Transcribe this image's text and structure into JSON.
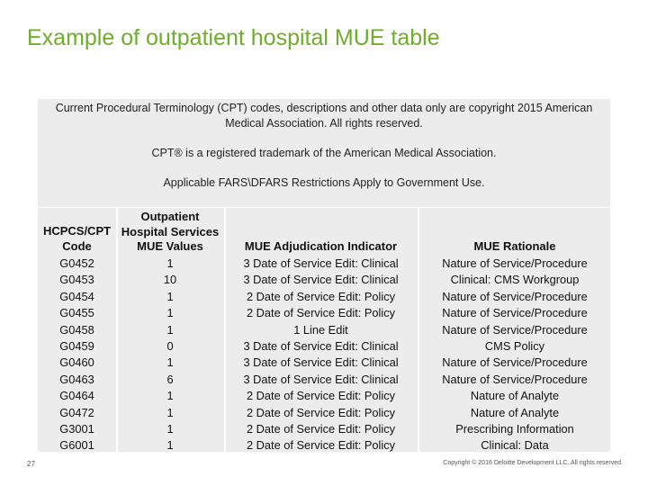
{
  "title": "Example of outpatient hospital MUE table",
  "notice": {
    "copyright": "Current Procedural Terminology (CPT) codes, descriptions and other data only are copyright 2015 American Medical Association. All rights reserved.",
    "trademark": "CPT® is a registered trademark of the American Medical Association.",
    "restrictions": "Applicable FARS\\DFARS Restrictions Apply to Government Use."
  },
  "table": {
    "headers": {
      "code_line1": "HCPCS/CPT",
      "code_line2": "Code",
      "values_line1": "Outpatient",
      "values_line2": "Hospital Services",
      "values_line3": "MUE Values",
      "indicator": "MUE Adjudication Indicator",
      "rationale": "MUE Rationale"
    },
    "rows": [
      {
        "code": "G0452",
        "value": "1",
        "indicator": "3 Date of Service Edit: Clinical",
        "rationale": "Nature of Service/Procedure"
      },
      {
        "code": "G0453",
        "value": "10",
        "indicator": "3 Date of Service Edit: Clinical",
        "rationale": "Clinical: CMS Workgroup"
      },
      {
        "code": "G0454",
        "value": "1",
        "indicator": "2 Date of Service Edit: Policy",
        "rationale": "Nature of Service/Procedure"
      },
      {
        "code": "G0455",
        "value": "1",
        "indicator": "2 Date of Service Edit: Policy",
        "rationale": "Nature of Service/Procedure"
      },
      {
        "code": "G0458",
        "value": "1",
        "indicator": "1 Line Edit",
        "rationale": "Nature of Service/Procedure"
      },
      {
        "code": "G0459",
        "value": "0",
        "indicator": "3 Date of Service Edit: Clinical",
        "rationale": "CMS Policy"
      },
      {
        "code": "G0460",
        "value": "1",
        "indicator": "3 Date of Service Edit: Clinical",
        "rationale": "Nature of Service/Procedure"
      },
      {
        "code": "G0463",
        "value": "6",
        "indicator": "3 Date of Service Edit: Clinical",
        "rationale": "Nature of Service/Procedure"
      },
      {
        "code": "G0464",
        "value": "1",
        "indicator": "2 Date of Service Edit: Policy",
        "rationale": "Nature of Analyte"
      },
      {
        "code": "G0472",
        "value": "1",
        "indicator": "2 Date of Service Edit: Policy",
        "rationale": "Nature of Analyte"
      },
      {
        "code": "G3001",
        "value": "1",
        "indicator": "2 Date of Service Edit: Policy",
        "rationale": "Prescribing Information"
      },
      {
        "code": "G6001",
        "value": "1",
        "indicator": "2 Date of Service Edit: Policy",
        "rationale": "Clinical: Data"
      }
    ]
  },
  "footer": {
    "page_number": "27",
    "copyright": "Copyright © 2016 Deloitte Development LLC. All rights reserved."
  },
  "colors": {
    "title": "#6fae2b",
    "panel": "#ececec"
  }
}
